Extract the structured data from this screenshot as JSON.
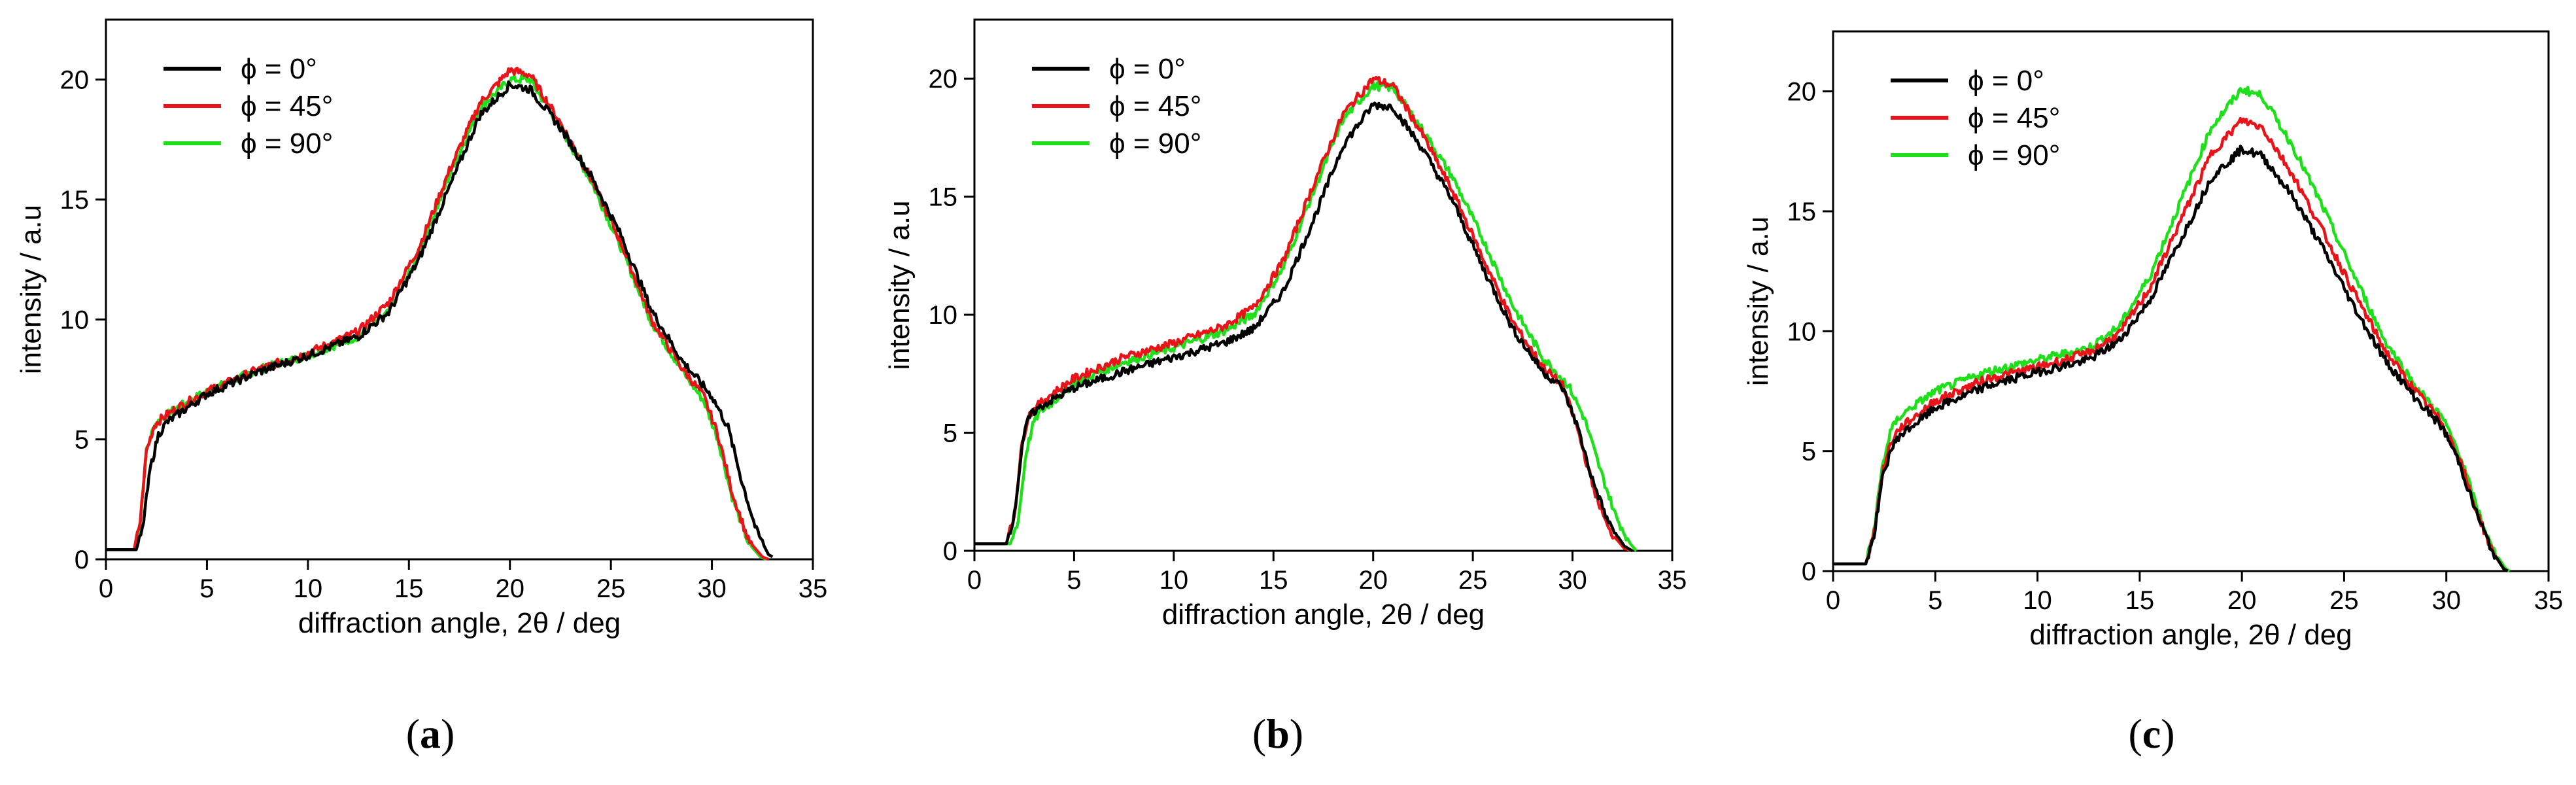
{
  "colors": {
    "black": "#000000",
    "red": "#e8141a",
    "green": "#1ee01a"
  },
  "panels": [
    {
      "label_open": "(",
      "label_letter": "a",
      "label_close": ")"
    },
    {
      "label_open": "(",
      "label_letter": "b",
      "label_close": ")"
    },
    {
      "label_open": "(",
      "label_letter": "c",
      "label_close": ")"
    }
  ],
  "chart_data": [
    {
      "type": "line",
      "xlabel": "diffraction angle, 2θ / deg",
      "ylabel": "intensity / a.u",
      "xlim": [
        0,
        35
      ],
      "ylim": [
        0,
        22.5
      ],
      "xticks": [
        0,
        5,
        10,
        15,
        20,
        25,
        30,
        35
      ],
      "yticks": [
        0,
        5,
        10,
        15,
        20
      ],
      "grid": false,
      "legend_position": "top-left",
      "series": [
        {
          "name": "ϕ = 0°",
          "color": "#000000",
          "x": [
            0,
            1.5,
            1.8,
            2.2,
            2.6,
            3,
            3.5,
            5,
            7.5,
            10,
            12.5,
            14,
            15.5,
            17,
            18.5,
            20,
            21,
            22.5,
            24,
            25.5,
            27,
            28.5,
            30,
            30.8,
            31.5,
            32.2,
            32.8,
            33
          ],
          "y": [
            0.4,
            0.4,
            1.2,
            3.8,
            5.2,
            5.7,
            6.0,
            6.9,
            7.8,
            8.5,
            9.3,
            10.3,
            12.5,
            15.5,
            18.5,
            19.8,
            19.6,
            18.0,
            16.0,
            13.5,
            10.4,
            8.3,
            6.8,
            5.5,
            3.2,
            1.2,
            0.2,
            0.1
          ]
        },
        {
          "name": "ϕ = 45°",
          "color": "#e8141a",
          "x": [
            0,
            1.4,
            1.7,
            2.0,
            2.4,
            2.8,
            3.5,
            5,
            7.5,
            10,
            12.5,
            14,
            15.5,
            17,
            18.5,
            20,
            21,
            22.5,
            24,
            25.5,
            27,
            28.5,
            29.6,
            30.3,
            31,
            31.8,
            32.5,
            32.8
          ],
          "y": [
            0.4,
            0.4,
            1.6,
            4.5,
            5.6,
            5.9,
            6.3,
            7.0,
            7.9,
            8.6,
            9.5,
            10.7,
            13.0,
            16.2,
            19.0,
            20.4,
            20.2,
            18.2,
            15.9,
            13.2,
            10.0,
            8.0,
            6.8,
            5.2,
            2.8,
            0.8,
            0.1,
            0.0
          ]
        },
        {
          "name": "ϕ = 90°",
          "color": "#1ee01a",
          "x": [
            0,
            1.4,
            1.7,
            2.0,
            2.4,
            2.8,
            3.5,
            5,
            7.5,
            10,
            12.5,
            14,
            15.5,
            17,
            18.5,
            20,
            21,
            22.5,
            24,
            25.5,
            27,
            28.5,
            29.6,
            30.3,
            31,
            31.8,
            32.4,
            32.7
          ],
          "y": [
            0.4,
            0.4,
            1.6,
            4.5,
            5.6,
            5.9,
            6.3,
            7.0,
            7.9,
            8.5,
            9.3,
            10.3,
            12.7,
            16.0,
            18.8,
            20.0,
            20.0,
            18.0,
            15.8,
            13.0,
            9.9,
            7.9,
            6.6,
            5.0,
            2.6,
            0.7,
            0.1,
            0.0
          ]
        }
      ]
    },
    {
      "type": "line",
      "xlabel": "diffraction angle, 2θ / deg",
      "ylabel": "intensity / a.u",
      "xlim": [
        0,
        35
      ],
      "ylim": [
        0,
        22.5
      ],
      "xticks": [
        0,
        5,
        10,
        15,
        20,
        25,
        30,
        35
      ],
      "yticks": [
        0,
        5,
        10,
        15,
        20
      ],
      "grid": false,
      "legend_position": "top-left",
      "series": [
        {
          "name": "ϕ = 0°",
          "color": "#000000",
          "x": [
            0,
            1.6,
            2.0,
            2.4,
            2.7,
            3,
            3.5,
            5,
            7.5,
            10,
            12.5,
            14,
            15.5,
            17,
            18.5,
            20,
            21,
            22.5,
            24,
            25.5,
            27,
            28.5,
            29.5,
            30.2,
            31,
            31.8,
            32.6,
            33
          ],
          "y": [
            0.3,
            0.3,
            1.5,
            4.5,
            5.6,
            5.9,
            6.2,
            6.9,
            7.6,
            8.2,
            8.8,
            9.4,
            11.0,
            14.0,
            17.2,
            18.9,
            18.8,
            17.0,
            14.8,
            12.0,
            9.4,
            7.6,
            6.9,
            5.4,
            3.0,
            1.2,
            0.2,
            0.0
          ]
        },
        {
          "name": "ϕ = 45°",
          "color": "#e8141a",
          "x": [
            0,
            1.6,
            2.0,
            2.4,
            2.7,
            3,
            3.5,
            5,
            7.5,
            10,
            12.5,
            14,
            15.5,
            17,
            18.5,
            20,
            21,
            22.5,
            24,
            25.5,
            27,
            28.5,
            29.5,
            30.2,
            31,
            31.8,
            32.6,
            33
          ],
          "y": [
            0.3,
            0.3,
            1.5,
            4.6,
            5.7,
            6.0,
            6.4,
            7.3,
            8.2,
            8.8,
            9.5,
            10.3,
            12.3,
            15.5,
            18.5,
            20.0,
            19.7,
            17.6,
            15.2,
            12.4,
            9.7,
            7.8,
            7.0,
            5.3,
            2.8,
            0.9,
            0.1,
            0.0
          ]
        },
        {
          "name": "ϕ = 90°",
          "color": "#1ee01a",
          "x": [
            0,
            1.8,
            2.2,
            2.6,
            3.0,
            3.3,
            3.8,
            5,
            7.5,
            10,
            12.5,
            14,
            15.5,
            17,
            18.5,
            20,
            21,
            22.5,
            24,
            25.5,
            27,
            28.5,
            29.8,
            30.6,
            31.4,
            32.2,
            32.9,
            33.2
          ],
          "y": [
            0.3,
            0.3,
            1.3,
            4.2,
            5.5,
            5.9,
            6.2,
            7.1,
            8.0,
            8.6,
            9.3,
            10.0,
            12.0,
            15.2,
            18.3,
            19.7,
            19.6,
            17.8,
            15.8,
            13.2,
            10.4,
            8.2,
            7.0,
            5.6,
            3.4,
            1.4,
            0.3,
            0.0
          ]
        }
      ]
    },
    {
      "type": "line",
      "xlabel": "diffraction angle, 2θ / deg",
      "ylabel": "intensity / a.u",
      "xlim": [
        0,
        35
      ],
      "ylim": [
        0,
        22.5
      ],
      "xticks": [
        0,
        5,
        10,
        15,
        20,
        25,
        30,
        35
      ],
      "yticks": [
        0,
        5,
        10,
        15,
        20
      ],
      "grid": false,
      "legend_position": "top-left",
      "series": [
        {
          "name": "ϕ = 0°",
          "color": "#000000",
          "x": [
            0,
            1.6,
            2.0,
            2.4,
            2.8,
            3.2,
            3.8,
            5,
            7.5,
            10,
            12.5,
            14,
            15.5,
            17,
            18.5,
            20,
            21,
            22.5,
            24,
            25.5,
            27,
            28.5,
            29.8,
            30.6,
            31.4,
            32.2,
            32.8,
            33
          ],
          "y": [
            0.3,
            0.3,
            1.5,
            3.8,
            5.0,
            5.6,
            6.0,
            6.8,
            7.7,
            8.3,
            8.8,
            9.6,
            11.3,
            13.8,
            16.4,
            17.6,
            17.3,
            15.6,
            13.4,
            11.0,
            8.8,
            7.2,
            6.0,
            4.6,
            2.6,
            0.9,
            0.1,
            0.0
          ]
        },
        {
          "name": "ϕ = 45°",
          "color": "#e8141a",
          "x": [
            0,
            1.6,
            2.0,
            2.4,
            2.8,
            3.2,
            3.8,
            5,
            7.5,
            10,
            12.5,
            14,
            15.5,
            17,
            18.5,
            20,
            21,
            22.5,
            24,
            25.5,
            27,
            28.5,
            29.8,
            30.6,
            31.4,
            32.2,
            32.8,
            33
          ],
          "y": [
            0.3,
            0.3,
            1.6,
            4.0,
            5.3,
            5.9,
            6.3,
            7.1,
            8.0,
            8.5,
            9.1,
            9.9,
            11.8,
            14.6,
            17.4,
            18.8,
            18.5,
            16.5,
            14.1,
            11.6,
            9.2,
            7.5,
            6.2,
            4.8,
            2.7,
            0.9,
            0.1,
            0.0
          ]
        },
        {
          "name": "ϕ = 90°",
          "color": "#1ee01a",
          "x": [
            0,
            1.6,
            2.0,
            2.4,
            2.8,
            3.2,
            3.8,
            5,
            7.5,
            10,
            12.5,
            14,
            15.5,
            17,
            18.5,
            20,
            21,
            22.5,
            24,
            25.5,
            27,
            28.5,
            29.8,
            30.6,
            31.4,
            32.2,
            32.9,
            33.1
          ],
          "y": [
            0.3,
            0.3,
            1.7,
            4.3,
            5.8,
            6.4,
            6.8,
            7.5,
            8.3,
            8.8,
            9.3,
            10.2,
            12.3,
            15.4,
            18.5,
            20.1,
            19.8,
            17.7,
            15.1,
            12.3,
            9.6,
            7.7,
            6.4,
            5.0,
            2.9,
            1.0,
            0.1,
            0.0
          ]
        }
      ]
    }
  ]
}
